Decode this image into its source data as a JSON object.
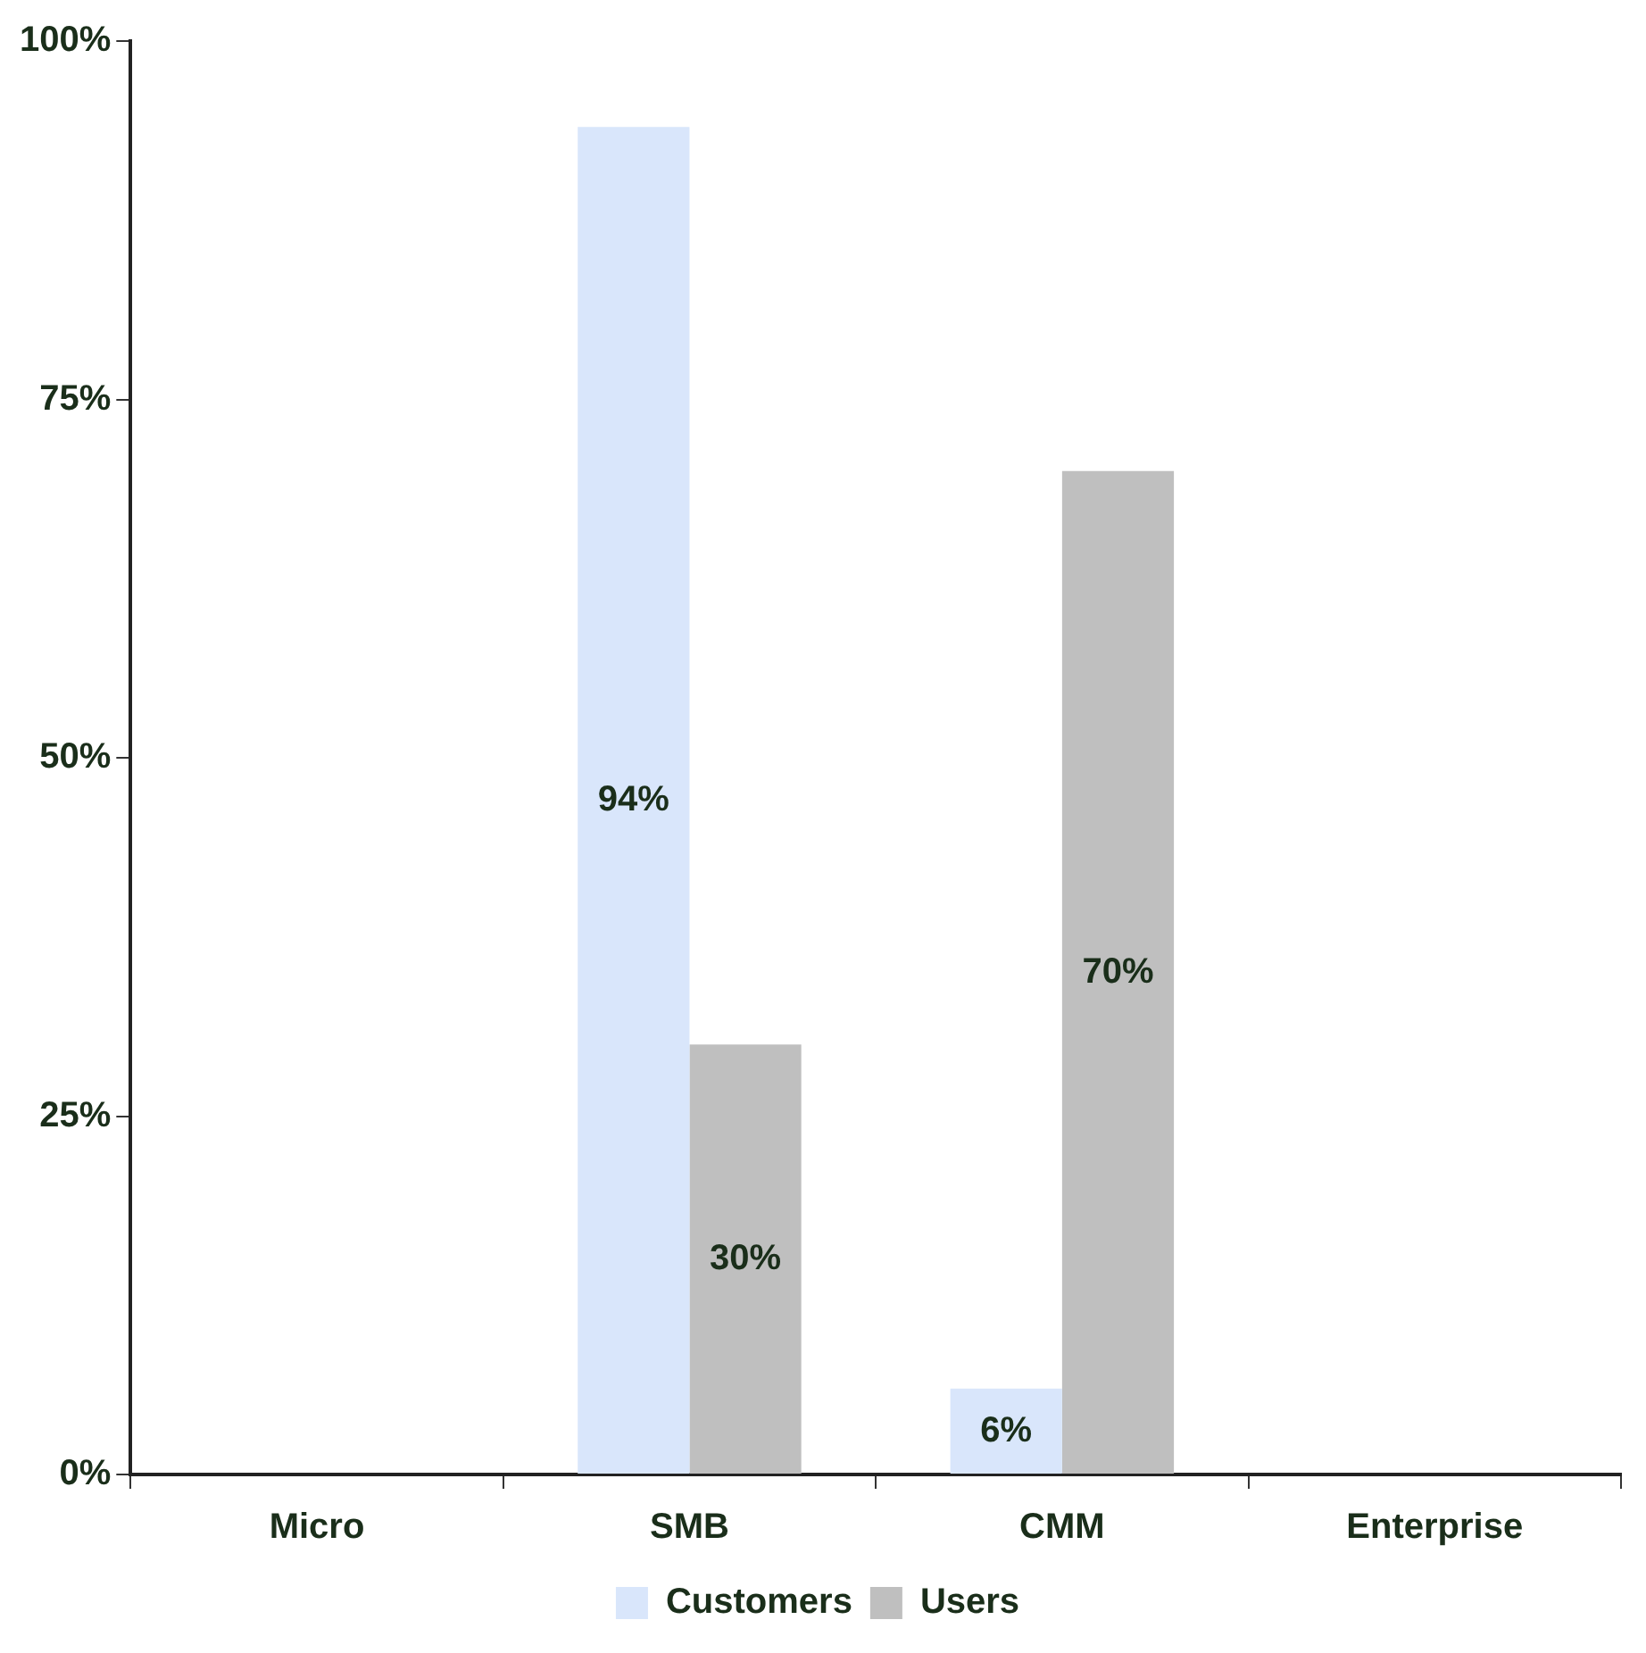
{
  "chart_data": {
    "type": "bar",
    "categories": [
      "Micro",
      "SMB",
      "CMM",
      "Enterprise"
    ],
    "series": [
      {
        "name": "Customers",
        "color": "#d9e6fb",
        "values": [
          null,
          94,
          6,
          null
        ],
        "value_labels": [
          null,
          "94%",
          "6%",
          null
        ]
      },
      {
        "name": "Users",
        "color": "#bfbfbf",
        "values": [
          null,
          30,
          70,
          null
        ],
        "value_labels": [
          null,
          "30%",
          "70%",
          null
        ]
      }
    ],
    "ylim": [
      0,
      100
    ],
    "yticks": [
      {
        "value": 0,
        "label": "0%"
      },
      {
        "value": 25,
        "label": "25%"
      },
      {
        "value": 50,
        "label": "50%"
      },
      {
        "value": 75,
        "label": "75%"
      },
      {
        "value": 100,
        "label": "100%"
      }
    ],
    "grid": false,
    "legend": "bottom"
  }
}
